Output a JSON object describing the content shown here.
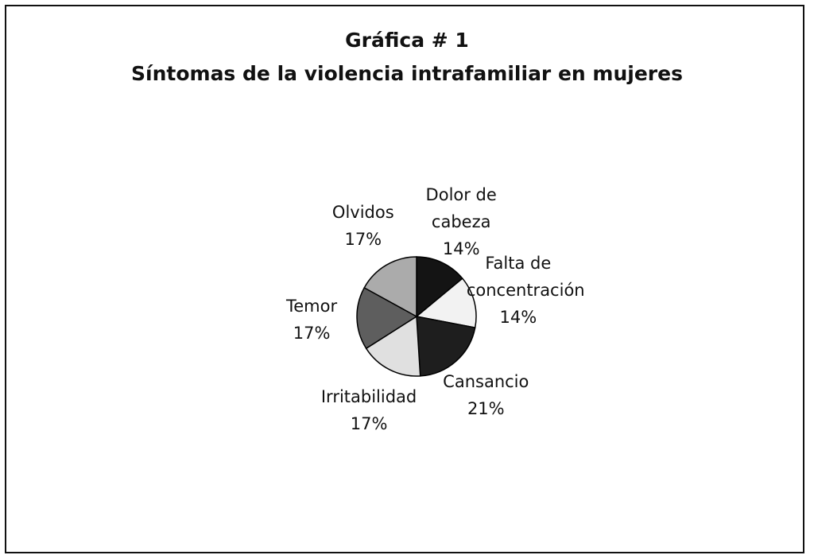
{
  "chart_data": {
    "type": "pie",
    "title": "Gráfica # 1",
    "subtitle": "Síntomas de la violencia intrafamiliar en mujeres",
    "categories": [
      "Dolor de cabeza",
      "Falta de concentración",
      "Cansancio",
      "Irritabilidad",
      "Temor",
      "Olvidos"
    ],
    "values": [
      14,
      14,
      21,
      17,
      17,
      17
    ],
    "value_labels": [
      "14%",
      "14%",
      "21%",
      "17%",
      "17%",
      "17%"
    ],
    "colors": [
      "#141414",
      "#f2f2f2",
      "#1e1e1e",
      "#e0e0e0",
      "#5e5e5e",
      "#ababab"
    ]
  }
}
